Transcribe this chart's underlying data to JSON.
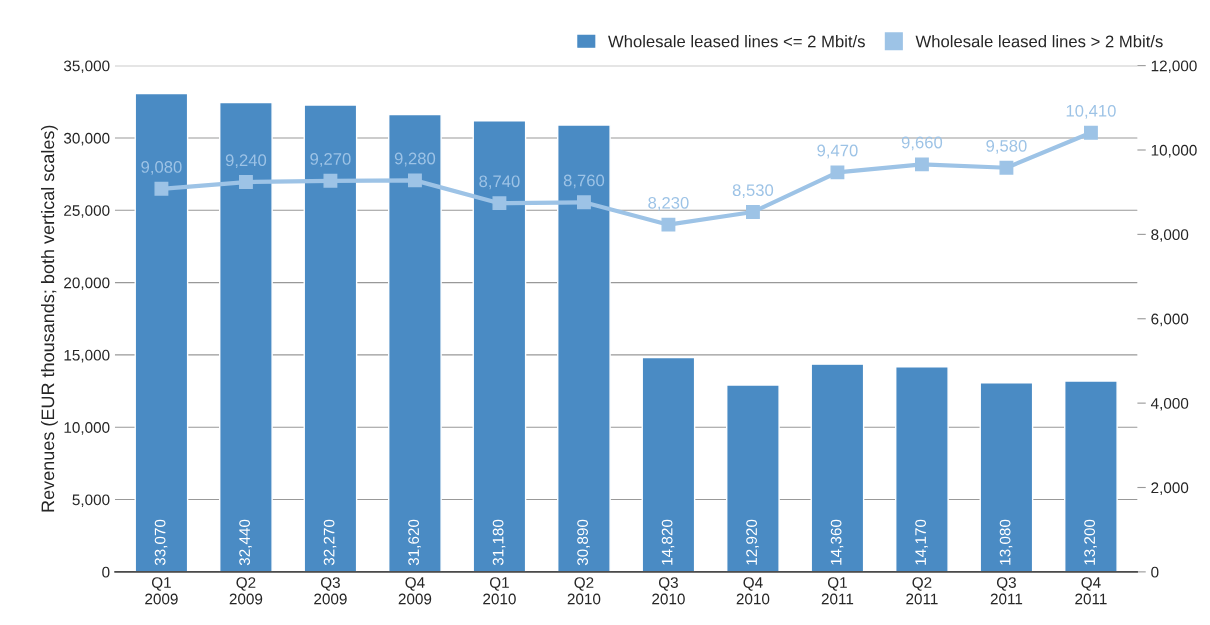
{
  "chart_data": {
    "type": "bar",
    "ylabel": "Revenues (EUR thousands; both vertical scales)",
    "categories": [
      "Q1\n2009",
      "Q2\n2009",
      "Q3\n2009",
      "Q4\n2009",
      "Q1\n2010",
      "Q2\n2010",
      "Q3\n2010",
      "Q4\n2010",
      "Q1\n2011",
      "Q2\n2011",
      "Q3\n2011",
      "Q4\n2011"
    ],
    "series": [
      {
        "name": "Wholesale leased lines <= 2 Mbit/s",
        "color": "#4a8bc4",
        "values": [
          33070,
          32440,
          32270,
          31620,
          31180,
          30890,
          14820,
          12920,
          14360,
          14170,
          13080,
          13200
        ],
        "value_labels": [
          "33,070",
          "32,440",
          "32,270",
          "31,620",
          "31,180",
          "30,890",
          "14,820",
          "12,920",
          "14,360",
          "14,170",
          "13,080",
          "13,200"
        ]
      },
      {
        "name": "Wholesale leased lines > 2 Mbit/s",
        "type": "line",
        "axis": "y2",
        "color": "#9dc3e6",
        "values": [
          9080,
          9240,
          9270,
          9280,
          8740,
          8760,
          8230,
          8530,
          9470,
          9660,
          9580,
          10410
        ],
        "value_labels": [
          "9,080",
          "9,240",
          "9,270",
          "9,280",
          "8,740",
          "8,760",
          "8,230",
          "8,530",
          "9,470",
          "9,660",
          "9,580",
          "10,410"
        ]
      }
    ],
    "ylim": [
      0,
      35000
    ],
    "yticks": [
      {
        "value": 0,
        "label": "0"
      },
      {
        "value": 5000,
        "label": "5,000"
      },
      {
        "value": 10000,
        "label": "10,000"
      },
      {
        "value": 15000,
        "label": "15,000"
      },
      {
        "value": 20000,
        "label": "20,000"
      },
      {
        "value": 25000,
        "label": "25,000"
      },
      {
        "value": 30000,
        "label": "30,000"
      },
      {
        "value": 35000,
        "label": "35,000"
      }
    ],
    "y2lim": [
      0,
      12000
    ],
    "y2ticks": [
      {
        "value": 0,
        "label": "0"
      },
      {
        "value": 2000,
        "label": "2,000"
      },
      {
        "value": 4000,
        "label": "4,000"
      },
      {
        "value": 6000,
        "label": "6,000"
      },
      {
        "value": 8000,
        "label": "8,000"
      },
      {
        "value": 10000,
        "label": "10,000"
      },
      {
        "value": 12000,
        "label": "12,000"
      }
    ],
    "grid": "y",
    "legend": "top right",
    "marker": "square",
    "line_style": "solid"
  }
}
